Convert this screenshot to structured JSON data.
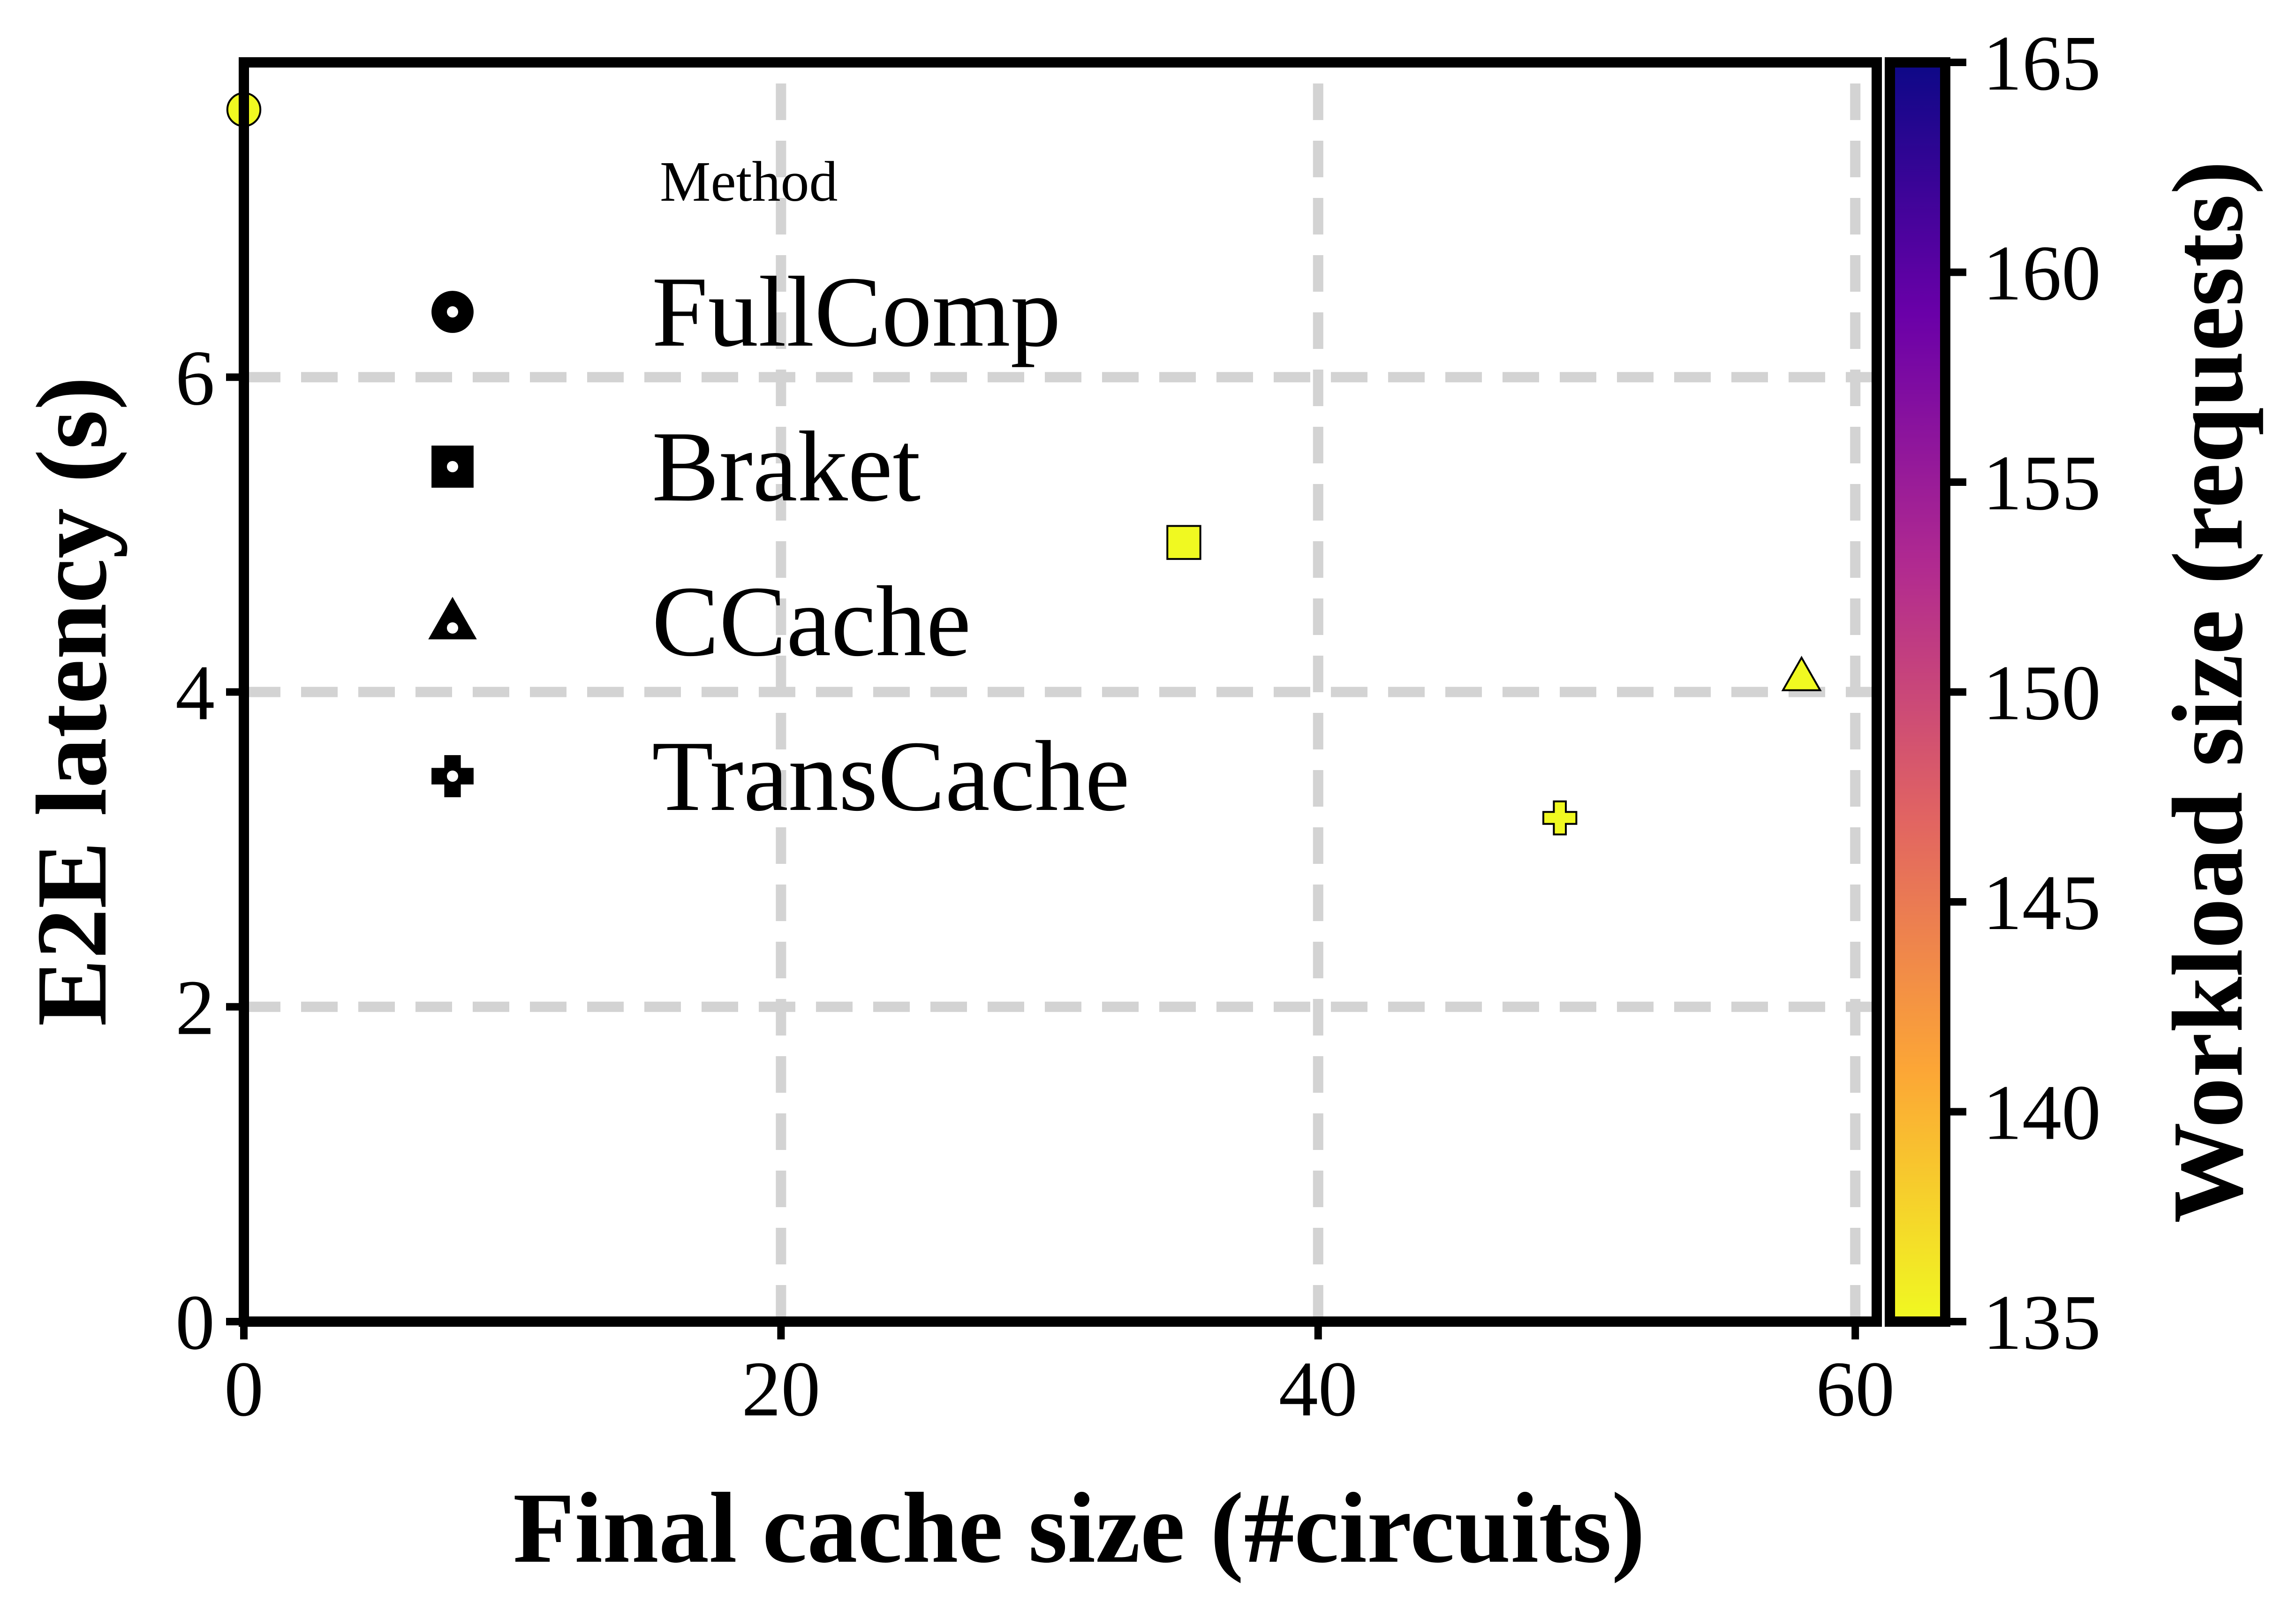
{
  "chart_data": {
    "type": "scatter",
    "xlabel": "Final cache size (#circuits)",
    "ylabel": "E2E latency (s)",
    "xlim": [
      0,
      60.8
    ],
    "ylim": [
      0,
      8.0
    ],
    "xticks": [
      0,
      20,
      40,
      60
    ],
    "yticks": [
      0,
      2,
      4,
      6
    ],
    "xtick_labels": [
      "0",
      "20",
      "40",
      "60"
    ],
    "ytick_labels": [
      "0",
      "2",
      "4",
      "6"
    ],
    "grid": true,
    "legend": {
      "title": "Method",
      "position": "upper-left",
      "entries": [
        {
          "label": "FullComp",
          "marker": "circle"
        },
        {
          "label": "Braket",
          "marker": "square"
        },
        {
          "label": "CCache",
          "marker": "triangle"
        },
        {
          "label": "TransCache",
          "marker": "plus"
        }
      ]
    },
    "points": [
      {
        "method": "FullComp",
        "marker": "circle",
        "x": 0,
        "y": 7.7,
        "workload": 135
      },
      {
        "method": "Braket",
        "marker": "square",
        "x": 35,
        "y": 4.95,
        "workload": 135
      },
      {
        "method": "CCache",
        "marker": "triangle",
        "x": 58,
        "y": 4.1,
        "workload": 135
      },
      {
        "method": "TransCache",
        "marker": "plus",
        "x": 49,
        "y": 3.2,
        "workload": 135
      }
    ],
    "colorbar": {
      "label": "Workload size (requests)",
      "min": 135,
      "max": 165,
      "ticks": [
        135,
        140,
        145,
        150,
        155,
        160,
        165
      ],
      "tick_labels": [
        "135",
        "140",
        "145",
        "150",
        "155",
        "160",
        "165"
      ],
      "colormap": "plasma",
      "stops": [
        "#f0f921",
        "#fca636",
        "#e16462",
        "#b12a90",
        "#6a00a8",
        "#0d0887"
      ]
    },
    "marker_color": "#f0f921"
  }
}
